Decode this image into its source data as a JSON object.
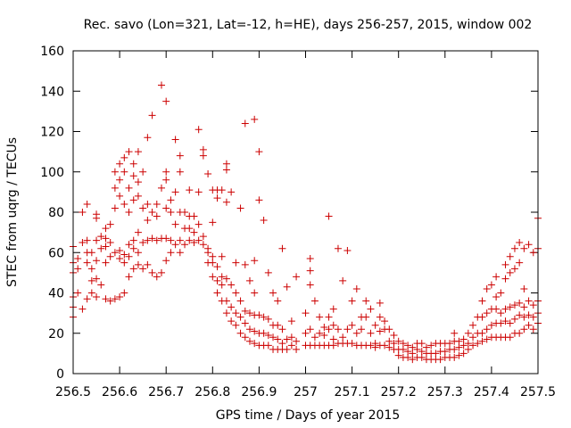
{
  "chart_data": {
    "type": "scatter",
    "title": "Rec. savo (Lon=321, Lat=-12, h=HE), days 256-257, 2015, window 002",
    "xlabel": "GPS time / Days of year 2015",
    "ylabel": "STEC from uqrg / TECUs",
    "xlim": [
      256.5,
      257.5
    ],
    "ylim": [
      0,
      160
    ],
    "x_ticks": [
      "256.5",
      "256.6",
      "256.7",
      "256.8",
      "256.9",
      "257",
      "257.1",
      "257.2",
      "257.3",
      "257.4",
      "257.5"
    ],
    "y_ticks": [
      "0",
      "20",
      "40",
      "60",
      "80",
      "100",
      "120",
      "140",
      "160"
    ],
    "grid": false,
    "marker": "+",
    "color": "#cc0000",
    "points": [
      [
        256.5,
        28
      ],
      [
        256.5,
        33
      ],
      [
        256.5,
        38
      ],
      [
        256.5,
        50
      ],
      [
        256.5,
        55
      ],
      [
        256.5,
        63
      ],
      [
        256.51,
        40
      ],
      [
        256.51,
        52
      ],
      [
        256.51,
        57
      ],
      [
        256.52,
        32
      ],
      [
        256.52,
        65
      ],
      [
        256.52,
        80
      ],
      [
        256.53,
        37
      ],
      [
        256.53,
        55
      ],
      [
        256.53,
        60
      ],
      [
        256.53,
        66
      ],
      [
        256.53,
        84
      ],
      [
        256.54,
        40
      ],
      [
        256.54,
        46
      ],
      [
        256.54,
        52
      ],
      [
        256.54,
        60
      ],
      [
        256.55,
        38
      ],
      [
        256.55,
        47
      ],
      [
        256.55,
        56
      ],
      [
        256.55,
        66
      ],
      [
        256.55,
        77
      ],
      [
        256.55,
        79
      ],
      [
        256.56,
        44
      ],
      [
        256.56,
        62
      ],
      [
        256.56,
        68
      ],
      [
        256.57,
        37
      ],
      [
        256.57,
        55
      ],
      [
        256.57,
        63
      ],
      [
        256.57,
        67
      ],
      [
        256.57,
        72
      ],
      [
        256.58,
        36
      ],
      [
        256.58,
        58
      ],
      [
        256.58,
        65
      ],
      [
        256.58,
        74
      ],
      [
        256.59,
        37
      ],
      [
        256.59,
        60
      ],
      [
        256.59,
        82
      ],
      [
        256.59,
        92
      ],
      [
        256.59,
        100
      ],
      [
        256.6,
        38
      ],
      [
        256.6,
        57
      ],
      [
        256.6,
        61
      ],
      [
        256.6,
        88
      ],
      [
        256.6,
        96
      ],
      [
        256.6,
        104
      ],
      [
        256.61,
        40
      ],
      [
        256.61,
        55
      ],
      [
        256.61,
        59
      ],
      [
        256.61,
        84
      ],
      [
        256.61,
        100
      ],
      [
        256.61,
        107
      ],
      [
        256.62,
        48
      ],
      [
        256.62,
        58
      ],
      [
        256.62,
        64
      ],
      [
        256.62,
        80
      ],
      [
        256.62,
        92
      ],
      [
        256.62,
        110
      ],
      [
        256.63,
        52
      ],
      [
        256.63,
        62
      ],
      [
        256.63,
        66
      ],
      [
        256.63,
        86
      ],
      [
        256.63,
        98
      ],
      [
        256.63,
        104
      ],
      [
        256.64,
        54
      ],
      [
        256.64,
        60
      ],
      [
        256.64,
        70
      ],
      [
        256.64,
        88
      ],
      [
        256.64,
        95
      ],
      [
        256.64,
        110
      ],
      [
        256.65,
        52
      ],
      [
        256.65,
        65
      ],
      [
        256.65,
        82
      ],
      [
        256.65,
        100
      ],
      [
        256.66,
        54
      ],
      [
        256.66,
        66
      ],
      [
        256.66,
        76
      ],
      [
        256.66,
        84
      ],
      [
        256.66,
        117
      ],
      [
        256.67,
        50
      ],
      [
        256.67,
        67
      ],
      [
        256.67,
        80
      ],
      [
        256.67,
        128
      ],
      [
        256.68,
        48
      ],
      [
        256.68,
        66
      ],
      [
        256.68,
        78
      ],
      [
        256.68,
        84
      ],
      [
        256.69,
        50
      ],
      [
        256.69,
        67
      ],
      [
        256.69,
        92
      ],
      [
        256.69,
        143
      ],
      [
        256.7,
        56
      ],
      [
        256.7,
        67
      ],
      [
        256.7,
        82
      ],
      [
        256.7,
        96
      ],
      [
        256.7,
        100
      ],
      [
        256.7,
        135
      ],
      [
        256.71,
        60
      ],
      [
        256.71,
        66
      ],
      [
        256.71,
        80
      ],
      [
        256.71,
        86
      ],
      [
        256.72,
        64
      ],
      [
        256.72,
        74
      ],
      [
        256.72,
        90
      ],
      [
        256.72,
        116
      ],
      [
        256.73,
        60
      ],
      [
        256.73,
        66
      ],
      [
        256.73,
        80
      ],
      [
        256.73,
        100
      ],
      [
        256.73,
        108
      ],
      [
        256.74,
        64
      ],
      [
        256.74,
        72
      ],
      [
        256.74,
        80
      ],
      [
        256.75,
        66
      ],
      [
        256.75,
        72
      ],
      [
        256.75,
        78
      ],
      [
        256.75,
        91
      ],
      [
        256.76,
        65
      ],
      [
        256.76,
        70
      ],
      [
        256.76,
        78
      ],
      [
        256.77,
        66
      ],
      [
        256.77,
        74
      ],
      [
        256.77,
        90
      ],
      [
        256.77,
        121
      ],
      [
        256.78,
        64
      ],
      [
        256.78,
        68
      ],
      [
        256.78,
        108
      ],
      [
        256.78,
        111
      ],
      [
        256.79,
        55
      ],
      [
        256.79,
        60
      ],
      [
        256.79,
        62
      ],
      [
        256.79,
        99
      ],
      [
        256.8,
        48
      ],
      [
        256.8,
        55
      ],
      [
        256.8,
        58
      ],
      [
        256.8,
        75
      ],
      [
        256.8,
        91
      ],
      [
        256.81,
        40
      ],
      [
        256.81,
        46
      ],
      [
        256.81,
        53
      ],
      [
        256.81,
        87
      ],
      [
        256.81,
        91
      ],
      [
        256.82,
        36
      ],
      [
        256.82,
        44
      ],
      [
        256.82,
        48
      ],
      [
        256.82,
        58
      ],
      [
        256.82,
        91
      ],
      [
        256.83,
        30
      ],
      [
        256.83,
        36
      ],
      [
        256.83,
        47
      ],
      [
        256.83,
        85
      ],
      [
        256.83,
        101
      ],
      [
        256.83,
        104
      ],
      [
        256.84,
        26
      ],
      [
        256.84,
        33
      ],
      [
        256.84,
        44
      ],
      [
        256.84,
        90
      ],
      [
        256.85,
        24
      ],
      [
        256.85,
        30
      ],
      [
        256.85,
        40
      ],
      [
        256.85,
        55
      ],
      [
        256.86,
        20
      ],
      [
        256.86,
        28
      ],
      [
        256.86,
        36
      ],
      [
        256.86,
        82
      ],
      [
        256.87,
        18
      ],
      [
        256.87,
        25
      ],
      [
        256.87,
        31
      ],
      [
        256.87,
        54
      ],
      [
        256.87,
        124
      ],
      [
        256.88,
        16
      ],
      [
        256.88,
        22
      ],
      [
        256.88,
        30
      ],
      [
        256.88,
        46
      ],
      [
        256.89,
        15
      ],
      [
        256.89,
        21
      ],
      [
        256.89,
        29
      ],
      [
        256.89,
        40
      ],
      [
        256.89,
        56
      ],
      [
        256.89,
        126
      ],
      [
        256.9,
        14
      ],
      [
        256.9,
        20
      ],
      [
        256.9,
        29
      ],
      [
        256.9,
        86
      ],
      [
        256.9,
        110
      ],
      [
        256.91,
        14
      ],
      [
        256.91,
        20
      ],
      [
        256.91,
        28
      ],
      [
        256.91,
        76
      ],
      [
        256.92,
        14
      ],
      [
        256.92,
        19
      ],
      [
        256.92,
        27
      ],
      [
        256.92,
        50
      ],
      [
        256.93,
        12
      ],
      [
        256.93,
        18
      ],
      [
        256.93,
        24
      ],
      [
        256.93,
        40
      ],
      [
        256.94,
        12
      ],
      [
        256.94,
        17
      ],
      [
        256.94,
        24
      ],
      [
        256.94,
        36
      ],
      [
        256.95,
        12
      ],
      [
        256.95,
        15
      ],
      [
        256.95,
        22
      ],
      [
        256.95,
        62
      ],
      [
        256.96,
        12
      ],
      [
        256.96,
        17
      ],
      [
        256.96,
        43
      ],
      [
        256.97,
        14
      ],
      [
        256.97,
        18
      ],
      [
        256.97,
        26
      ],
      [
        256.98,
        12
      ],
      [
        256.98,
        16
      ],
      [
        256.98,
        48
      ],
      [
        257.0,
        14
      ],
      [
        257.0,
        20
      ],
      [
        257.0,
        30
      ],
      [
        257.01,
        14
      ],
      [
        257.01,
        22
      ],
      [
        257.01,
        44
      ],
      [
        257.01,
        51
      ],
      [
        257.01,
        57
      ],
      [
        257.02,
        14
      ],
      [
        257.02,
        18
      ],
      [
        257.02,
        36
      ],
      [
        257.03,
        14
      ],
      [
        257.03,
        20
      ],
      [
        257.03,
        28
      ],
      [
        257.04,
        14
      ],
      [
        257.04,
        19
      ],
      [
        257.04,
        23
      ],
      [
        257.05,
        14
      ],
      [
        257.05,
        22
      ],
      [
        257.05,
        28
      ],
      [
        257.05,
        78
      ],
      [
        257.06,
        14
      ],
      [
        257.06,
        17
      ],
      [
        257.06,
        24
      ],
      [
        257.06,
        32
      ],
      [
        257.07,
        15
      ],
      [
        257.07,
        22
      ],
      [
        257.07,
        62
      ],
      [
        257.08,
        15
      ],
      [
        257.08,
        18
      ],
      [
        257.08,
        46
      ],
      [
        257.09,
        15
      ],
      [
        257.09,
        22
      ],
      [
        257.09,
        61
      ],
      [
        257.1,
        15
      ],
      [
        257.1,
        24
      ],
      [
        257.1,
        36
      ],
      [
        257.11,
        14
      ],
      [
        257.11,
        20
      ],
      [
        257.11,
        42
      ],
      [
        257.12,
        14
      ],
      [
        257.12,
        22
      ],
      [
        257.12,
        28
      ],
      [
        257.13,
        14
      ],
      [
        257.13,
        28
      ],
      [
        257.13,
        36
      ],
      [
        257.14,
        14
      ],
      [
        257.14,
        20
      ],
      [
        257.14,
        32
      ],
      [
        257.15,
        13
      ],
      [
        257.15,
        15
      ],
      [
        257.15,
        24
      ],
      [
        257.16,
        14
      ],
      [
        257.16,
        21
      ],
      [
        257.16,
        28
      ],
      [
        257.16,
        35
      ],
      [
        257.17,
        14
      ],
      [
        257.17,
        22
      ],
      [
        257.17,
        26
      ],
      [
        257.18,
        13
      ],
      [
        257.18,
        16
      ],
      [
        257.18,
        22
      ],
      [
        257.19,
        12
      ],
      [
        257.19,
        15
      ],
      [
        257.19,
        19
      ],
      [
        257.2,
        9
      ],
      [
        257.2,
        12
      ],
      [
        257.2,
        16
      ],
      [
        257.21,
        8
      ],
      [
        257.21,
        12
      ],
      [
        257.21,
        15
      ],
      [
        257.22,
        8
      ],
      [
        257.22,
        11
      ],
      [
        257.22,
        14
      ],
      [
        257.23,
        7
      ],
      [
        257.23,
        10
      ],
      [
        257.23,
        13
      ],
      [
        257.24,
        8
      ],
      [
        257.24,
        12
      ],
      [
        257.24,
        15
      ],
      [
        257.25,
        8
      ],
      [
        257.25,
        11
      ],
      [
        257.25,
        15
      ],
      [
        257.26,
        7
      ],
      [
        257.26,
        10
      ],
      [
        257.26,
        13
      ],
      [
        257.27,
        7
      ],
      [
        257.27,
        10
      ],
      [
        257.27,
        14
      ],
      [
        257.28,
        7
      ],
      [
        257.28,
        10
      ],
      [
        257.28,
        15
      ],
      [
        257.29,
        7
      ],
      [
        257.29,
        11
      ],
      [
        257.29,
        15
      ],
      [
        257.3,
        8
      ],
      [
        257.3,
        11
      ],
      [
        257.3,
        15
      ],
      [
        257.31,
        8
      ],
      [
        257.31,
        12
      ],
      [
        257.31,
        15
      ],
      [
        257.32,
        8
      ],
      [
        257.32,
        12
      ],
      [
        257.32,
        16
      ],
      [
        257.32,
        20
      ],
      [
        257.33,
        9
      ],
      [
        257.33,
        13
      ],
      [
        257.33,
        16
      ],
      [
        257.34,
        10
      ],
      [
        257.34,
        14
      ],
      [
        257.34,
        17
      ],
      [
        257.35,
        12
      ],
      [
        257.35,
        15
      ],
      [
        257.35,
        20
      ],
      [
        257.36,
        14
      ],
      [
        257.36,
        18
      ],
      [
        257.36,
        24
      ],
      [
        257.37,
        15
      ],
      [
        257.37,
        20
      ],
      [
        257.37,
        28
      ],
      [
        257.38,
        16
      ],
      [
        257.38,
        20
      ],
      [
        257.38,
        28
      ],
      [
        257.38,
        36
      ],
      [
        257.39,
        17
      ],
      [
        257.39,
        22
      ],
      [
        257.39,
        30
      ],
      [
        257.39,
        42
      ],
      [
        257.4,
        18
      ],
      [
        257.4,
        24
      ],
      [
        257.4,
        32
      ],
      [
        257.4,
        44
      ],
      [
        257.41,
        18
      ],
      [
        257.41,
        25
      ],
      [
        257.41,
        32
      ],
      [
        257.41,
        38
      ],
      [
        257.41,
        48
      ],
      [
        257.42,
        18
      ],
      [
        257.42,
        25
      ],
      [
        257.42,
        30
      ],
      [
        257.42,
        40
      ],
      [
        257.43,
        18
      ],
      [
        257.43,
        26
      ],
      [
        257.43,
        32
      ],
      [
        257.43,
        47
      ],
      [
        257.43,
        54
      ],
      [
        257.44,
        18
      ],
      [
        257.44,
        25
      ],
      [
        257.44,
        33
      ],
      [
        257.44,
        50
      ],
      [
        257.44,
        58
      ],
      [
        257.45,
        20
      ],
      [
        257.45,
        27
      ],
      [
        257.45,
        34
      ],
      [
        257.45,
        52
      ],
      [
        257.45,
        62
      ],
      [
        257.46,
        20
      ],
      [
        257.46,
        29
      ],
      [
        257.46,
        35
      ],
      [
        257.46,
        55
      ],
      [
        257.46,
        65
      ],
      [
        257.47,
        22
      ],
      [
        257.47,
        28
      ],
      [
        257.47,
        33
      ],
      [
        257.47,
        42
      ],
      [
        257.47,
        62
      ],
      [
        257.48,
        24
      ],
      [
        257.48,
        29
      ],
      [
        257.48,
        36
      ],
      [
        257.48,
        64
      ],
      [
        257.49,
        22
      ],
      [
        257.49,
        28
      ],
      [
        257.49,
        34
      ],
      [
        257.49,
        60
      ],
      [
        257.5,
        25
      ],
      [
        257.5,
        30
      ],
      [
        257.5,
        36
      ],
      [
        257.5,
        62
      ],
      [
        257.5,
        77
      ]
    ]
  }
}
